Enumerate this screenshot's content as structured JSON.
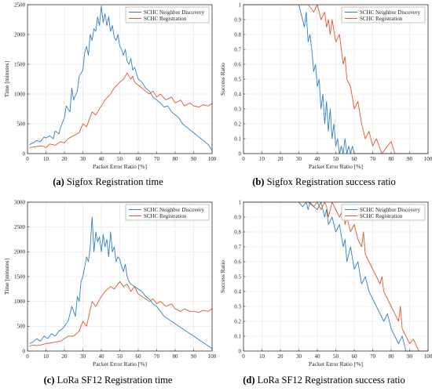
{
  "colors": {
    "discovery": "#2e82c4",
    "registration": "#e0582a",
    "grid": "#e3e3e3",
    "axis": "#333333"
  },
  "chart_data": [
    {
      "id": "a",
      "type": "line",
      "caption_tag": "(a)",
      "caption_text": " Sigfox Registration time",
      "xlabel": "Packet Error Ratio [%]",
      "ylabel": "Time [minutes]",
      "xlim": [
        0,
        100
      ],
      "ylim": [
        0,
        2500
      ],
      "xticks": [
        0,
        10,
        20,
        30,
        40,
        50,
        60,
        70,
        80,
        90,
        100
      ],
      "yticks": [
        0,
        500,
        1000,
        1500,
        2000,
        2500
      ],
      "grid": true,
      "legend": "top-right",
      "series": [
        {
          "name": "SCHC Neighbor Discovery",
          "color": "#2e82c4",
          "x": [
            1,
            3,
            5,
            7,
            9,
            10,
            12,
            14,
            15,
            17,
            18,
            20,
            21,
            23,
            24,
            25,
            27,
            28,
            30,
            31,
            32,
            33,
            34,
            35,
            36,
            37,
            38,
            39,
            40,
            41,
            42,
            43,
            44,
            45,
            46,
            47,
            48,
            49,
            50,
            51,
            52,
            53,
            54,
            55,
            56,
            57,
            58,
            60,
            62,
            64,
            66,
            68,
            70,
            72,
            74,
            76,
            78,
            80,
            82,
            84,
            86,
            88,
            90,
            92,
            94,
            96,
            98,
            100
          ],
          "y": [
            150,
            180,
            220,
            200,
            280,
            260,
            300,
            250,
            380,
            330,
            450,
            600,
            800,
            700,
            1100,
            900,
            1050,
            1300,
            1400,
            1700,
            1800,
            1650,
            2000,
            1900,
            2100,
            2050,
            2300,
            2150,
            2480,
            2200,
            2350,
            2150,
            2300,
            2050,
            2150,
            1950,
            1900,
            2000,
            1800,
            1750,
            1650,
            1750,
            1550,
            1500,
            1600,
            1400,
            1450,
            1250,
            1200,
            1100,
            1050,
            950,
            900,
            850,
            780,
            800,
            700,
            650,
            600,
            500,
            450,
            400,
            350,
            300,
            250,
            200,
            150,
            50
          ]
        },
        {
          "name": "SCHC Registration",
          "color": "#e0582a",
          "x": [
            1,
            3,
            5,
            8,
            10,
            12,
            15,
            18,
            20,
            22,
            25,
            28,
            30,
            32,
            35,
            37,
            40,
            42,
            45,
            47,
            50,
            52,
            54,
            55,
            56,
            57,
            58,
            60,
            62,
            64,
            66,
            68,
            70,
            72,
            75,
            78,
            80,
            83,
            85,
            88,
            90,
            93,
            95,
            98,
            100
          ],
          "y": [
            100,
            110,
            120,
            130,
            100,
            160,
            140,
            200,
            180,
            250,
            300,
            350,
            500,
            450,
            700,
            650,
            800,
            900,
            1000,
            1100,
            1200,
            1250,
            1350,
            1300,
            1250,
            1300,
            1200,
            1150,
            1100,
            1050,
            1000,
            1050,
            950,
            1000,
            900,
            950,
            850,
            900,
            800,
            850,
            800,
            780,
            820,
            800,
            840
          ]
        }
      ]
    },
    {
      "id": "b",
      "type": "line",
      "caption_tag": "(b)",
      "caption_text": " Sigfox Registration success ratio",
      "xlabel": "Packet Error Ratio [%]",
      "ylabel": "Success Ratio",
      "xlim": [
        0,
        100
      ],
      "ylim": [
        0,
        1
      ],
      "xticks": [
        0,
        10,
        20,
        30,
        40,
        50,
        60,
        70,
        80,
        90,
        100
      ],
      "yticks": [
        0,
        0.1,
        0.2,
        0.3,
        0.4,
        0.5,
        0.6,
        0.7,
        0.8,
        0.9,
        1
      ],
      "grid": true,
      "legend": "top-right",
      "series": [
        {
          "name": "SCHC Neighbor Discovery",
          "color": "#2e82c4",
          "x": [
            0,
            5,
            10,
            15,
            20,
            25,
            30,
            31,
            32,
            33,
            34,
            35,
            36,
            37,
            38,
            39,
            40,
            41,
            42,
            43,
            44,
            45,
            46,
            47,
            48,
            49,
            50,
            51,
            52,
            53,
            54,
            55,
            56,
            57,
            58,
            59,
            60,
            61,
            62,
            63,
            64,
            65,
            70,
            80,
            90,
            100
          ],
          "y": [
            1,
            1,
            1,
            1,
            1,
            1,
            1,
            0.95,
            0.9,
            0.85,
            0.95,
            0.75,
            0.8,
            0.7,
            0.55,
            0.6,
            0.45,
            0.5,
            0.3,
            0.4,
            0.2,
            0.35,
            0.15,
            0.3,
            0.1,
            0.2,
            0.05,
            0.1,
            0,
            0.05,
            0,
            0.1,
            0,
            0.05,
            0,
            0.05,
            0,
            0,
            0,
            0,
            0,
            0,
            0,
            0,
            0,
            0
          ]
        },
        {
          "name": "SCHC Registration",
          "color": "#e0582a",
          "x": [
            0,
            5,
            10,
            15,
            20,
            25,
            30,
            35,
            37,
            38,
            40,
            42,
            44,
            45,
            46,
            47,
            48,
            50,
            52,
            54,
            55,
            56,
            58,
            60,
            62,
            64,
            65,
            66,
            68,
            70,
            72,
            75,
            78,
            80,
            82,
            85,
            90,
            100
          ],
          "y": [
            1,
            1,
            1,
            1,
            1,
            1,
            1,
            1,
            0.97,
            0.95,
            1,
            0.9,
            0.95,
            0.85,
            0.9,
            0.8,
            0.9,
            0.75,
            0.8,
            0.6,
            0.65,
            0.5,
            0.45,
            0.3,
            0.35,
            0.2,
            0.15,
            0.1,
            0.15,
            0.05,
            0.1,
            0,
            0.05,
            0.08,
            0,
            0,
            0,
            0
          ]
        }
      ]
    },
    {
      "id": "c",
      "type": "line",
      "caption_tag": "(c)",
      "caption_text": " LoRa SF12 Registration time",
      "xlabel": "Packet Error Ratio [%]",
      "ylabel": "Time [minutes]",
      "xlim": [
        0,
        100
      ],
      "ylim": [
        0,
        3000
      ],
      "xticks": [
        0,
        10,
        20,
        30,
        40,
        50,
        60,
        70,
        80,
        90,
        100
      ],
      "yticks": [
        0,
        500,
        1000,
        1500,
        2000,
        2500,
        3000
      ],
      "grid": true,
      "legend": "top-right",
      "series": [
        {
          "name": "SCHC Neighbor Discovery",
          "color": "#2e82c4",
          "x": [
            1,
            3,
            5,
            7,
            9,
            11,
            13,
            15,
            17,
            19,
            20,
            22,
            24,
            26,
            27,
            28,
            29,
            30,
            31,
            32,
            33,
            34,
            35,
            36,
            37,
            38,
            39,
            40,
            41,
            42,
            43,
            44,
            45,
            46,
            47,
            48,
            49,
            50,
            51,
            52,
            53,
            54,
            55,
            56,
            58,
            60,
            62,
            64,
            66,
            68,
            70,
            72,
            74,
            76,
            78,
            80,
            82,
            84,
            86,
            88,
            90,
            92,
            94,
            96,
            98,
            100
          ],
          "y": [
            150,
            180,
            250,
            200,
            300,
            250,
            350,
            300,
            400,
            450,
            500,
            600,
            900,
            700,
            1100,
            1000,
            1400,
            1500,
            1700,
            1900,
            1800,
            2100,
            2700,
            2000,
            2400,
            2200,
            2300,
            2000,
            2350,
            2100,
            2250,
            1900,
            2400,
            2000,
            2100,
            1800,
            1900,
            1850,
            1700,
            1600,
            1750,
            1500,
            1400,
            1350,
            1300,
            1250,
            1200,
            1100,
            1050,
            950,
            900,
            800,
            700,
            650,
            600,
            550,
            500,
            450,
            400,
            350,
            300,
            250,
            200,
            150,
            100,
            50
          ]
        },
        {
          "name": "SCHC Registration",
          "color": "#e0582a",
          "x": [
            1,
            3,
            5,
            8,
            10,
            12,
            15,
            18,
            20,
            22,
            25,
            28,
            30,
            32,
            35,
            37,
            40,
            42,
            45,
            47,
            50,
            52,
            54,
            56,
            58,
            60,
            62,
            64,
            66,
            68,
            70,
            72,
            75,
            78,
            80,
            83,
            85,
            88,
            90,
            93,
            95,
            98,
            100
          ],
          "y": [
            100,
            120,
            110,
            130,
            150,
            160,
            180,
            200,
            250,
            300,
            300,
            400,
            600,
            500,
            1000,
            900,
            1100,
            1200,
            1300,
            1250,
            1400,
            1300,
            1350,
            1200,
            1300,
            1150,
            1100,
            1050,
            1000,
            1050,
            950,
            1000,
            900,
            950,
            850,
            800,
            850,
            800,
            800,
            780,
            820,
            800,
            850
          ]
        }
      ]
    },
    {
      "id": "d",
      "type": "line",
      "caption_tag": "(d)",
      "caption_text": " LoRa SF12 Registration success ratio",
      "xlabel": "Packet Error Ratio [%]",
      "ylabel": "Success Ratio",
      "xlim": [
        0,
        100
      ],
      "ylim": [
        0,
        1
      ],
      "xticks": [
        0,
        10,
        20,
        30,
        40,
        50,
        60,
        70,
        80,
        90,
        100
      ],
      "yticks": [
        0,
        0.1,
        0.2,
        0.3,
        0.4,
        0.5,
        0.6,
        0.7,
        0.8,
        0.9,
        1
      ],
      "grid": true,
      "legend": "top-right",
      "series": [
        {
          "name": "SCHC Neighbor Discovery",
          "color": "#2e82c4",
          "x": [
            0,
            5,
            10,
            15,
            20,
            25,
            30,
            32,
            34,
            35,
            36,
            38,
            40,
            42,
            44,
            45,
            46,
            48,
            50,
            52,
            54,
            55,
            56,
            58,
            60,
            62,
            64,
            66,
            68,
            70,
            72,
            74,
            76,
            78,
            80,
            82,
            84,
            86,
            88,
            90,
            95,
            100
          ],
          "y": [
            1,
            1,
            1,
            1,
            1,
            1,
            1,
            0.97,
            1,
            0.95,
            1,
            0.97,
            0.95,
            1,
            0.9,
            0.95,
            0.85,
            0.9,
            0.8,
            0.85,
            0.7,
            0.75,
            0.6,
            0.7,
            0.55,
            0.6,
            0.45,
            0.5,
            0.4,
            0.35,
            0.3,
            0.25,
            0.2,
            0.25,
            0.15,
            0.1,
            0.05,
            0.1,
            0,
            0,
            0,
            0
          ]
        },
        {
          "name": "SCHC Registration",
          "color": "#e0582a",
          "x": [
            0,
            5,
            10,
            15,
            20,
            25,
            30,
            35,
            38,
            40,
            42,
            44,
            45,
            46,
            48,
            50,
            52,
            54,
            55,
            56,
            58,
            60,
            62,
            64,
            65,
            66,
            68,
            70,
            72,
            74,
            75,
            76,
            78,
            80,
            82,
            84,
            85,
            86,
            88,
            90,
            92,
            95,
            100
          ],
          "y": [
            1,
            1,
            1,
            1,
            1,
            1,
            1,
            1,
            0.97,
            1,
            0.95,
            1,
            0.97,
            0.9,
            1,
            0.95,
            0.9,
            0.95,
            0.85,
            0.9,
            0.8,
            0.85,
            0.75,
            0.7,
            0.8,
            0.65,
            0.6,
            0.55,
            0.5,
            0.45,
            0.5,
            0.4,
            0.35,
            0.3,
            0.25,
            0.2,
            0.3,
            0.15,
            0.1,
            0.05,
            0.08,
            0,
            0
          ]
        }
      ]
    }
  ]
}
